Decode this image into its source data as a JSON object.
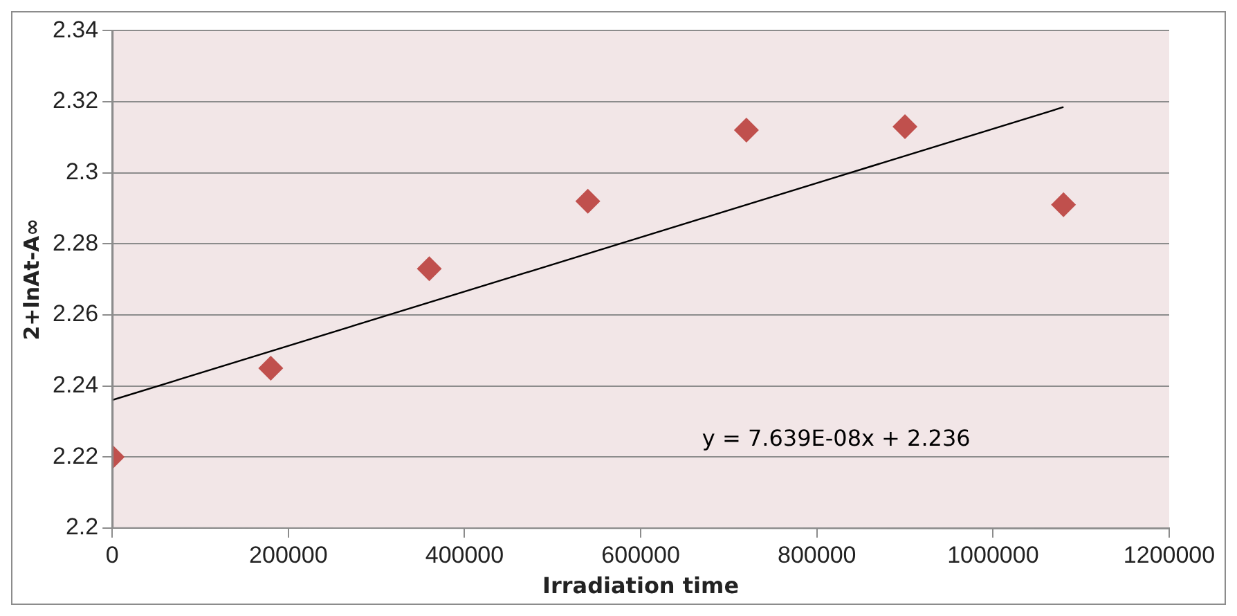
{
  "chart_data": {
    "type": "scatter",
    "xlabel": "Irradiation time",
    "ylabel": "2+lnAt-A∞",
    "x": [
      0,
      180000,
      360000,
      540000,
      720000,
      900000,
      1080000
    ],
    "series": [
      {
        "type": "scatter",
        "color": "#c0504d",
        "marker": "diamond",
        "values": [
          2.22,
          2.245,
          2.273,
          2.292,
          2.312,
          2.313,
          2.291
        ]
      },
      {
        "type": "line",
        "color": "#000000",
        "marker": "none",
        "x": [
          0,
          1080000
        ],
        "values": [
          2.236,
          2.3185
        ]
      }
    ],
    "xlim": [
      0,
      1200000
    ],
    "xticks": [
      0,
      200000,
      400000,
      600000,
      800000,
      1000000,
      1200000
    ],
    "ylim": [
      2.2,
      2.34
    ],
    "yticks": [
      2.2,
      2.22,
      2.24,
      2.26,
      2.28,
      2.3,
      2.32,
      2.34
    ],
    "grid": "y",
    "legend": false,
    "annotations": [
      "y = 7.639E-08x + 2.236"
    ]
  }
}
